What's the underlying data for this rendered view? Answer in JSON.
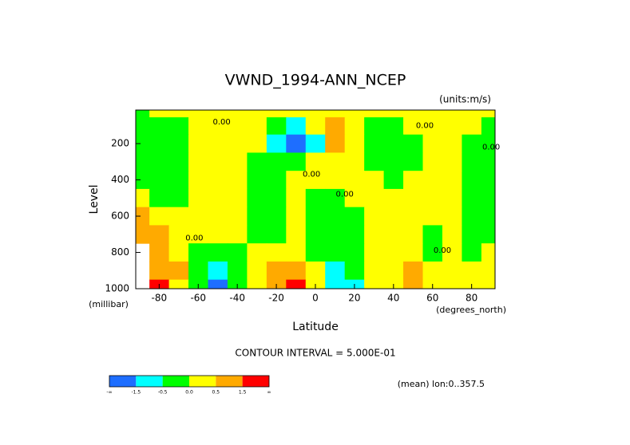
{
  "chart_data": {
    "type": "contour",
    "title": "VWND_1994-ANN_NCEP",
    "subtitle": "(units:m/s)",
    "x_label": "Latitude",
    "x_units": "(degrees_north)",
    "y_label": "Level",
    "y_units": "(millibar)",
    "footer": "CONTOUR INTERVAL = 5.000E-01",
    "note": "(mean) lon:0..357.5",
    "x": [
      -90,
      -80,
      -70,
      -60,
      -50,
      -40,
      -30,
      -20,
      -10,
      0,
      10,
      20,
      30,
      40,
      50,
      60,
      70,
      80,
      90
    ],
    "levels_axis": [
      10,
      100,
      200,
      300,
      400,
      500,
      600,
      700,
      800,
      900,
      1000
    ],
    "values": [
      [
        -0.1,
        0.1,
        0.1,
        0.2,
        0.2,
        0.1,
        0.1,
        0.1,
        0.2,
        0.1,
        0.1,
        0.2,
        0.1,
        0.1,
        0.2,
        0.1,
        0.2,
        0.1,
        0.1
      ],
      [
        -0.2,
        -0.2,
        -0.2,
        0.1,
        0.2,
        0.2,
        0.1,
        -0.2,
        -0.6,
        0.1,
        0.6,
        0.2,
        -0.2,
        -0.2,
        0.1,
        0.2,
        0.2,
        0.1,
        -0.1
      ],
      [
        -0.2,
        -0.3,
        -0.3,
        0.1,
        0.2,
        0.2,
        0.1,
        -0.8,
        -1.6,
        -0.7,
        0.7,
        0.2,
        -0.3,
        -0.3,
        -0.1,
        0.2,
        0.2,
        -0.1,
        -0.2
      ],
      [
        -0.2,
        -0.3,
        -0.2,
        0.1,
        0.2,
        0.2,
        -0.1,
        -0.2,
        -0.3,
        0.1,
        0.2,
        0.3,
        -0.2,
        -0.3,
        -0.1,
        0.2,
        0.2,
        -0.2,
        -0.2
      ],
      [
        -0.2,
        -0.2,
        -0.2,
        0.2,
        0.3,
        0.2,
        -0.2,
        -0.3,
        0.1,
        0.2,
        0.2,
        0.2,
        0.1,
        -0.2,
        0.1,
        0.2,
        0.1,
        -0.2,
        -0.2
      ],
      [
        0.1,
        -0.2,
        -0.1,
        0.2,
        0.3,
        0.2,
        -0.2,
        -0.3,
        0.1,
        -0.2,
        -0.2,
        0.1,
        0.2,
        0.2,
        0.1,
        0.2,
        0.1,
        -0.2,
        -0.2
      ],
      [
        0.7,
        0.3,
        0.1,
        0.2,
        0.3,
        0.1,
        -0.2,
        -0.2,
        0.1,
        -0.3,
        -0.3,
        -0.2,
        0.1,
        0.2,
        0.2,
        0.1,
        0.1,
        -0.3,
        -0.2
      ],
      [
        1.0,
        0.6,
        0.2,
        0.1,
        0.2,
        0.1,
        -0.2,
        -0.1,
        0.2,
        -0.2,
        -0.3,
        -0.2,
        0.1,
        0.2,
        0.2,
        -0.1,
        0.1,
        -0.2,
        -0.1
      ],
      [
        null,
        0.7,
        0.3,
        -0.2,
        -0.2,
        -0.3,
        0.1,
        0.2,
        0.2,
        -0.2,
        -0.3,
        -0.3,
        0.1,
        0.2,
        0.2,
        -0.1,
        0.1,
        -0.1,
        0.1
      ],
      [
        null,
        1.2,
        0.5,
        -0.2,
        -0.8,
        -0.4,
        0.2,
        0.8,
        1.2,
        0.1,
        -0.6,
        -0.5,
        0.1,
        0.3,
        0.7,
        0.2,
        0.1,
        0.1,
        0.1
      ],
      [
        null,
        1.8,
        0.3,
        -0.3,
        -1.7,
        -0.5,
        0.3,
        1.0,
        1.9,
        0.2,
        -0.8,
        -1.0,
        0.1,
        0.4,
        0.8,
        0.3,
        0.1,
        0.1,
        0.1
      ]
    ],
    "xlim": [
      -92,
      92
    ],
    "ylim": [
      1000,
      15
    ],
    "xticks": [
      -80,
      -60,
      -40,
      -20,
      0,
      20,
      40,
      60,
      80
    ],
    "yticks": [
      200,
      400,
      600,
      800,
      1000
    ],
    "contour_levels": [
      -1.5,
      -0.5,
      0,
      0.5,
      1.5
    ],
    "colors": [
      "#1e6eff",
      "#00ffff",
      "#00ff00",
      "#ffff00",
      "#ffaa00",
      "#ff0000"
    ],
    "colorbar_labels": [
      "-∞",
      "-1.5",
      "-0.5",
      "0.0",
      "0.5",
      "1.5",
      "∞"
    ],
    "contour_labels": [
      {
        "text": "0.00",
        "x": -48,
        "level": 80
      },
      {
        "text": "0.00",
        "x": 56,
        "level": 100
      },
      {
        "text": "0.00",
        "x": 90,
        "level": 220
      },
      {
        "text": "0.00",
        "x": -2,
        "level": 370
      },
      {
        "text": "0.00",
        "x": 15,
        "level": 480
      },
      {
        "text": "0.00",
        "x": -62,
        "level": 720
      },
      {
        "text": "0.00",
        "x": 65,
        "level": 790
      }
    ]
  }
}
